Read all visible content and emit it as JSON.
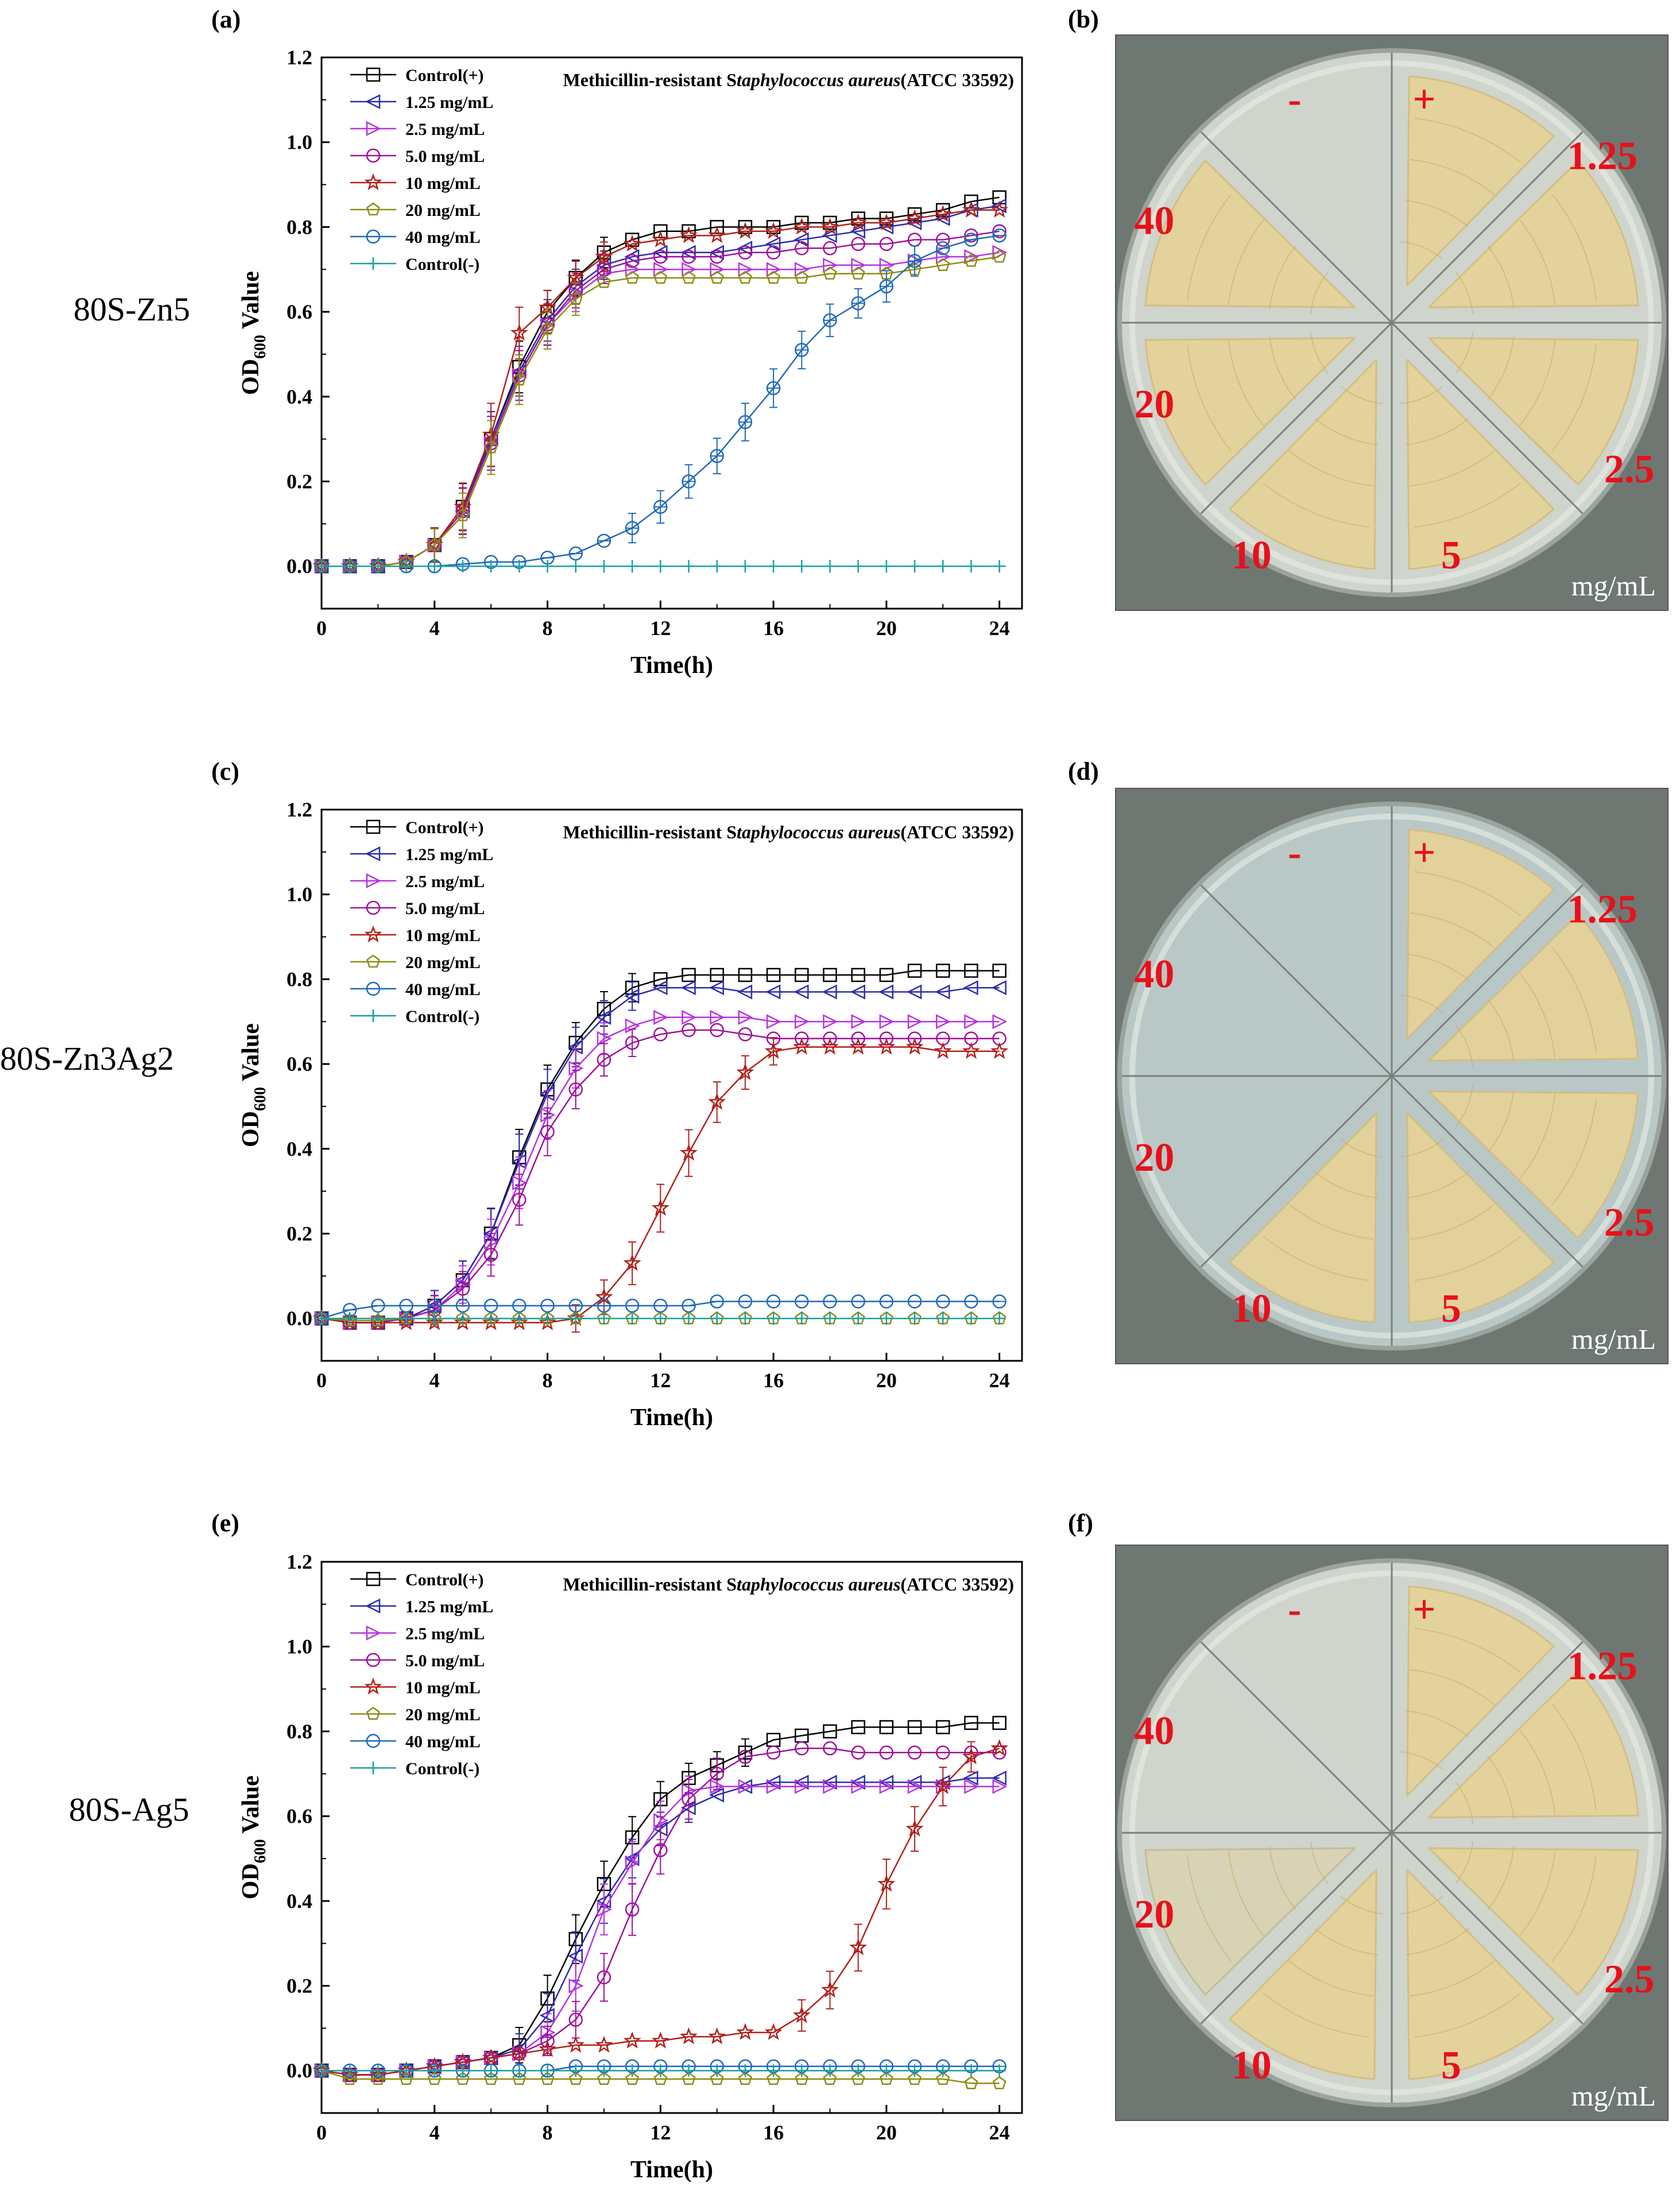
{
  "figure": {
    "panel_labels": [
      "(a)",
      "(b)",
      "(c)",
      "(d)",
      "(e)",
      "(f)"
    ],
    "row_labels": [
      "80S-Zn5",
      "80S-Zn3Ag2",
      "80S-Ag5"
    ]
  },
  "plates": [
    {
      "sectors": [
        "-",
        "+",
        "1.25",
        "2.5",
        "5",
        "10",
        "20",
        "40"
      ],
      "unit": "mg/mL"
    },
    {
      "sectors": [
        "-",
        "+",
        "1.25",
        "2.5",
        "5",
        "10",
        "20",
        "40"
      ],
      "unit": "mg/mL"
    },
    {
      "sectors": [
        "-",
        "+",
        "1.25",
        "2.5",
        "5",
        "10",
        "20",
        "40"
      ],
      "unit": "mg/mL"
    }
  ],
  "colors": {
    "control_pos": "#000000",
    "c1_25": "#2b2bb0",
    "c2_5": "#b633e0",
    "c5_0": "#a0109a",
    "c10": "#b0201a",
    "c20": "#8c8c10",
    "c40": "#1f6ab8",
    "control_neg": "#1aa0a0",
    "plate_label": "#e8101a",
    "agar": "#cfd4cc",
    "colony": "#e6d29a"
  },
  "chart_data": [
    {
      "type": "line",
      "title": "Methicillin-resistant Staphylococcus aureus(ATCC 33592)",
      "title_plain": "Methicillin-resistant S",
      "title_italic": "taphylococcus aureus",
      "title_tail": "(ATCC 33592)",
      "xlabel": "Time(h)",
      "ylabel_pre": "OD",
      "ylabel_sub": "600",
      "ylabel_post": " Value",
      "xlim": [
        0,
        24.8
      ],
      "ylim": [
        -0.1,
        1.2
      ],
      "xticks": [
        0,
        4,
        8,
        12,
        16,
        20,
        24
      ],
      "xtick_labels": [
        "0",
        "4",
        "8",
        "12",
        "16",
        "20",
        "24"
      ],
      "yticks": [
        0.0,
        0.2,
        0.4,
        0.6,
        0.8,
        1.0,
        1.2
      ],
      "ytick_labels": [
        "0.0",
        "0.2",
        "0.4",
        "0.6",
        "0.8",
        "1.0",
        "1.2"
      ],
      "x": [
        0,
        1,
        2,
        3,
        4,
        5,
        6,
        7,
        8,
        9,
        10,
        11,
        12,
        13,
        14,
        15,
        16,
        17,
        18,
        19,
        20,
        21,
        22,
        23,
        24
      ],
      "legend_position": "top-left",
      "series": [
        {
          "name": "Control(+)",
          "marker": "square",
          "color": "#000000",
          "values": [
            0,
            0,
            0,
            0.01,
            0.05,
            0.14,
            0.3,
            0.47,
            0.6,
            0.68,
            0.74,
            0.77,
            0.79,
            0.79,
            0.8,
            0.8,
            0.8,
            0.81,
            0.81,
            0.82,
            0.82,
            0.83,
            0.84,
            0.86,
            0.87
          ]
        },
        {
          "name": "1.25 mg/mL",
          "marker": "triangle-left",
          "color": "#2b2bb0",
          "values": [
            0,
            0,
            0,
            0.01,
            0.05,
            0.13,
            0.3,
            0.46,
            0.58,
            0.66,
            0.71,
            0.73,
            0.74,
            0.74,
            0.74,
            0.75,
            0.76,
            0.77,
            0.78,
            0.79,
            0.8,
            0.81,
            0.82,
            0.84,
            0.85
          ]
        },
        {
          "name": "2.5 mg/mL",
          "marker": "triangle-right",
          "color": "#b633e0",
          "values": [
            0,
            0,
            0,
            0.01,
            0.05,
            0.13,
            0.29,
            0.45,
            0.57,
            0.64,
            0.69,
            0.7,
            0.7,
            0.7,
            0.7,
            0.7,
            0.7,
            0.7,
            0.71,
            0.71,
            0.71,
            0.72,
            0.73,
            0.73,
            0.74
          ]
        },
        {
          "name": "5.0 mg/mL",
          "marker": "circle",
          "color": "#a0109a",
          "values": [
            0,
            0,
            0,
            0.01,
            0.05,
            0.13,
            0.29,
            0.45,
            0.57,
            0.65,
            0.7,
            0.72,
            0.73,
            0.73,
            0.73,
            0.74,
            0.74,
            0.75,
            0.75,
            0.76,
            0.76,
            0.77,
            0.77,
            0.78,
            0.79
          ]
        },
        {
          "name": "10 mg/mL",
          "marker": "star",
          "color": "#b0201a",
          "values": [
            0,
            0,
            0,
            0.01,
            0.05,
            0.14,
            0.31,
            0.55,
            0.61,
            0.68,
            0.73,
            0.76,
            0.77,
            0.78,
            0.78,
            0.79,
            0.79,
            0.8,
            0.8,
            0.81,
            0.81,
            0.82,
            0.83,
            0.84,
            0.84
          ]
        },
        {
          "name": "20 mg/mL",
          "marker": "pentagon",
          "color": "#8c8c10",
          "values": [
            0,
            0,
            0,
            0.01,
            0.05,
            0.12,
            0.28,
            0.44,
            0.56,
            0.63,
            0.67,
            0.68,
            0.68,
            0.68,
            0.68,
            0.68,
            0.68,
            0.68,
            0.69,
            0.69,
            0.69,
            0.7,
            0.71,
            0.72,
            0.73
          ]
        },
        {
          "name": "40 mg/mL",
          "marker": "circle-plus",
          "color": "#1f6ab8",
          "values": [
            0,
            0,
            0,
            0,
            0,
            0.005,
            0.01,
            0.01,
            0.02,
            0.03,
            0.06,
            0.09,
            0.14,
            0.2,
            0.26,
            0.34,
            0.42,
            0.51,
            0.58,
            0.62,
            0.66,
            0.72,
            0.75,
            0.77,
            0.78
          ]
        },
        {
          "name": "Control(-)",
          "marker": "plus",
          "color": "#1aa0a0",
          "values": [
            0,
            0,
            0,
            0,
            0,
            0,
            0,
            0,
            0,
            0,
            0,
            0,
            0,
            0,
            0,
            0,
            0,
            0,
            0,
            0,
            0,
            0,
            0,
            0,
            0
          ]
        }
      ]
    },
    {
      "type": "line",
      "title": "Methicillin-resistant Staphylococcus aureus(ATCC 33592)",
      "title_plain": "Methicillin-resistant S",
      "title_italic": "taphylococcus aureus",
      "title_tail": "(ATCC 33592)",
      "xlabel": "Time(h)",
      "ylabel_pre": "OD",
      "ylabel_sub": "600",
      "ylabel_post": " Value",
      "xlim": [
        0,
        24.8
      ],
      "ylim": [
        -0.1,
        1.2
      ],
      "xticks": [
        0,
        4,
        8,
        12,
        16,
        20,
        24
      ],
      "xtick_labels": [
        "0",
        "4",
        "8",
        "12",
        "16",
        "20",
        "24"
      ],
      "yticks": [
        0.0,
        0.2,
        0.4,
        0.6,
        0.8,
        1.0,
        1.2
      ],
      "ytick_labels": [
        "0.0",
        "0.2",
        "0.4",
        "0.6",
        "0.8",
        "1.0",
        "1.2"
      ],
      "x": [
        0,
        1,
        2,
        3,
        4,
        5,
        6,
        7,
        8,
        9,
        10,
        11,
        12,
        13,
        14,
        15,
        16,
        17,
        18,
        19,
        20,
        21,
        22,
        23,
        24
      ],
      "legend_position": "top-left",
      "series": [
        {
          "name": "Control(+)",
          "marker": "square",
          "color": "#000000",
          "values": [
            0,
            -0.01,
            -0.01,
            0,
            0.03,
            0.09,
            0.2,
            0.38,
            0.54,
            0.65,
            0.73,
            0.78,
            0.8,
            0.81,
            0.81,
            0.81,
            0.81,
            0.81,
            0.81,
            0.81,
            0.81,
            0.82,
            0.82,
            0.82,
            0.82
          ]
        },
        {
          "name": "1.25 mg/mL",
          "marker": "triangle-left",
          "color": "#2b2bb0",
          "values": [
            0,
            -0.01,
            -0.01,
            0,
            0.03,
            0.09,
            0.2,
            0.37,
            0.53,
            0.64,
            0.71,
            0.76,
            0.78,
            0.78,
            0.78,
            0.77,
            0.77,
            0.77,
            0.77,
            0.77,
            0.77,
            0.77,
            0.77,
            0.78,
            0.78
          ]
        },
        {
          "name": "2.5 mg/mL",
          "marker": "triangle-right",
          "color": "#b633e0",
          "values": [
            0,
            -0.01,
            -0.01,
            0,
            0.02,
            0.08,
            0.18,
            0.32,
            0.48,
            0.59,
            0.66,
            0.69,
            0.71,
            0.71,
            0.71,
            0.71,
            0.7,
            0.7,
            0.7,
            0.7,
            0.7,
            0.7,
            0.7,
            0.7,
            0.7
          ]
        },
        {
          "name": "5.0 mg/mL",
          "marker": "circle",
          "color": "#a0109a",
          "values": [
            0,
            -0.01,
            -0.01,
            0,
            0.02,
            0.07,
            0.15,
            0.28,
            0.44,
            0.54,
            0.61,
            0.65,
            0.67,
            0.68,
            0.68,
            0.67,
            0.66,
            0.66,
            0.66,
            0.66,
            0.66,
            0.66,
            0.66,
            0.66,
            0.66
          ]
        },
        {
          "name": "10 mg/mL",
          "marker": "star",
          "color": "#b0201a",
          "values": [
            0,
            -0.01,
            -0.01,
            -0.01,
            -0.01,
            -0.01,
            -0.01,
            -0.01,
            -0.01,
            0,
            0.05,
            0.13,
            0.26,
            0.39,
            0.51,
            0.58,
            0.63,
            0.64,
            0.64,
            0.64,
            0.64,
            0.64,
            0.63,
            0.63,
            0.63
          ]
        },
        {
          "name": "20 mg/mL",
          "marker": "pentagon",
          "color": "#8c8c10",
          "values": [
            0,
            -0.005,
            -0.005,
            0,
            0,
            0,
            0,
            0,
            0,
            0,
            0,
            0,
            0,
            0,
            0,
            0,
            0,
            0,
            0,
            0,
            0,
            0,
            0,
            0,
            0
          ]
        },
        {
          "name": "40 mg/mL",
          "marker": "circle-plus",
          "color": "#1f6ab8",
          "values": [
            0,
            0.02,
            0.03,
            0.03,
            0.03,
            0.03,
            0.03,
            0.03,
            0.03,
            0.03,
            0.03,
            0.03,
            0.03,
            0.03,
            0.04,
            0.04,
            0.04,
            0.04,
            0.04,
            0.04,
            0.04,
            0.04,
            0.04,
            0.04,
            0.04
          ]
        },
        {
          "name": "Control(-)",
          "marker": "plus",
          "color": "#1aa0a0",
          "values": [
            0,
            0,
            0,
            0,
            0,
            0,
            0,
            0,
            0,
            0,
            0,
            0,
            0,
            0,
            0,
            0,
            0,
            0,
            0,
            0,
            0,
            0,
            0,
            0,
            0
          ]
        }
      ]
    },
    {
      "type": "line",
      "title": "Methicillin-resistant Staphylococcus aureus(ATCC 33592)",
      "title_plain": "Methicillin-resistant S",
      "title_italic": "taphylococcus aureus",
      "title_tail": "(ATCC 33592)",
      "xlabel": "Time(h)",
      "ylabel_pre": "OD",
      "ylabel_sub": "600",
      "ylabel_post": " Value",
      "xlim": [
        0,
        24.8
      ],
      "ylim": [
        -0.1,
        1.2
      ],
      "xticks": [
        0,
        4,
        8,
        12,
        16,
        20,
        24
      ],
      "xtick_labels": [
        "0",
        "4",
        "8",
        "12",
        "16",
        "20",
        "24"
      ],
      "yticks": [
        0.0,
        0.2,
        0.4,
        0.6,
        0.8,
        1.0,
        1.2
      ],
      "ytick_labels": [
        "0.0",
        "0.2",
        "0.4",
        "0.6",
        "0.8",
        "1.0",
        "1.2"
      ],
      "x": [
        0,
        1,
        2,
        3,
        4,
        5,
        6,
        7,
        8,
        9,
        10,
        11,
        12,
        13,
        14,
        15,
        16,
        17,
        18,
        19,
        20,
        21,
        22,
        23,
        24
      ],
      "legend_position": "top-left",
      "series": [
        {
          "name": "Control(+)",
          "marker": "square",
          "color": "#000000",
          "values": [
            0,
            -0.01,
            -0.01,
            0,
            0.01,
            0.02,
            0.03,
            0.06,
            0.17,
            0.31,
            0.44,
            0.55,
            0.64,
            0.69,
            0.72,
            0.75,
            0.78,
            0.79,
            0.8,
            0.81,
            0.81,
            0.81,
            0.81,
            0.82,
            0.82
          ]
        },
        {
          "name": "1.25 mg/mL",
          "marker": "triangle-left",
          "color": "#2b2bb0",
          "values": [
            0,
            -0.01,
            -0.01,
            0,
            0.01,
            0.02,
            0.03,
            0.05,
            0.13,
            0.27,
            0.4,
            0.5,
            0.57,
            0.62,
            0.65,
            0.67,
            0.68,
            0.68,
            0.68,
            0.68,
            0.68,
            0.68,
            0.68,
            0.69,
            0.69
          ]
        },
        {
          "name": "2.5 mg/mL",
          "marker": "triangle-right",
          "color": "#b633e0",
          "values": [
            0,
            -0.01,
            -0.01,
            0,
            0.01,
            0.02,
            0.03,
            0.04,
            0.09,
            0.2,
            0.38,
            0.49,
            0.59,
            0.66,
            0.67,
            0.67,
            0.67,
            0.67,
            0.67,
            0.67,
            0.67,
            0.67,
            0.67,
            0.67,
            0.67
          ]
        },
        {
          "name": "5.0 mg/mL",
          "marker": "circle",
          "color": "#a0109a",
          "values": [
            0,
            -0.01,
            -0.01,
            0,
            0.01,
            0.02,
            0.03,
            0.04,
            0.07,
            0.12,
            0.22,
            0.38,
            0.52,
            0.64,
            0.7,
            0.74,
            0.75,
            0.76,
            0.76,
            0.75,
            0.75,
            0.75,
            0.75,
            0.75,
            0.75
          ]
        },
        {
          "name": "10 mg/mL",
          "marker": "star",
          "color": "#b0201a",
          "values": [
            0,
            -0.01,
            -0.01,
            0,
            0.01,
            0.02,
            0.03,
            0.04,
            0.05,
            0.06,
            0.06,
            0.07,
            0.07,
            0.08,
            0.08,
            0.09,
            0.09,
            0.13,
            0.19,
            0.29,
            0.44,
            0.57,
            0.67,
            0.74,
            0.76
          ]
        },
        {
          "name": "20 mg/mL",
          "marker": "pentagon",
          "color": "#8c8c10",
          "values": [
            0,
            -0.02,
            -0.02,
            -0.02,
            -0.02,
            -0.02,
            -0.02,
            -0.02,
            -0.02,
            -0.02,
            -0.02,
            -0.02,
            -0.02,
            -0.02,
            -0.02,
            -0.02,
            -0.02,
            -0.02,
            -0.02,
            -0.02,
            -0.02,
            -0.02,
            -0.02,
            -0.03,
            -0.03
          ]
        },
        {
          "name": "40 mg/mL",
          "marker": "circle-plus",
          "color": "#1f6ab8",
          "values": [
            0,
            0,
            0,
            0,
            0,
            0,
            0,
            0,
            0,
            0.01,
            0.01,
            0.01,
            0.01,
            0.01,
            0.01,
            0.01,
            0.01,
            0.01,
            0.01,
            0.01,
            0.01,
            0.01,
            0.01,
            0.01,
            0.01
          ]
        },
        {
          "name": "Control(-)",
          "marker": "plus",
          "color": "#1aa0a0",
          "values": [
            0,
            0,
            0,
            0,
            0,
            0,
            0,
            0,
            0,
            0,
            0,
            0,
            0,
            0,
            0,
            0,
            0,
            0,
            0,
            0,
            0,
            0,
            0,
            0,
            0
          ]
        }
      ]
    }
  ]
}
